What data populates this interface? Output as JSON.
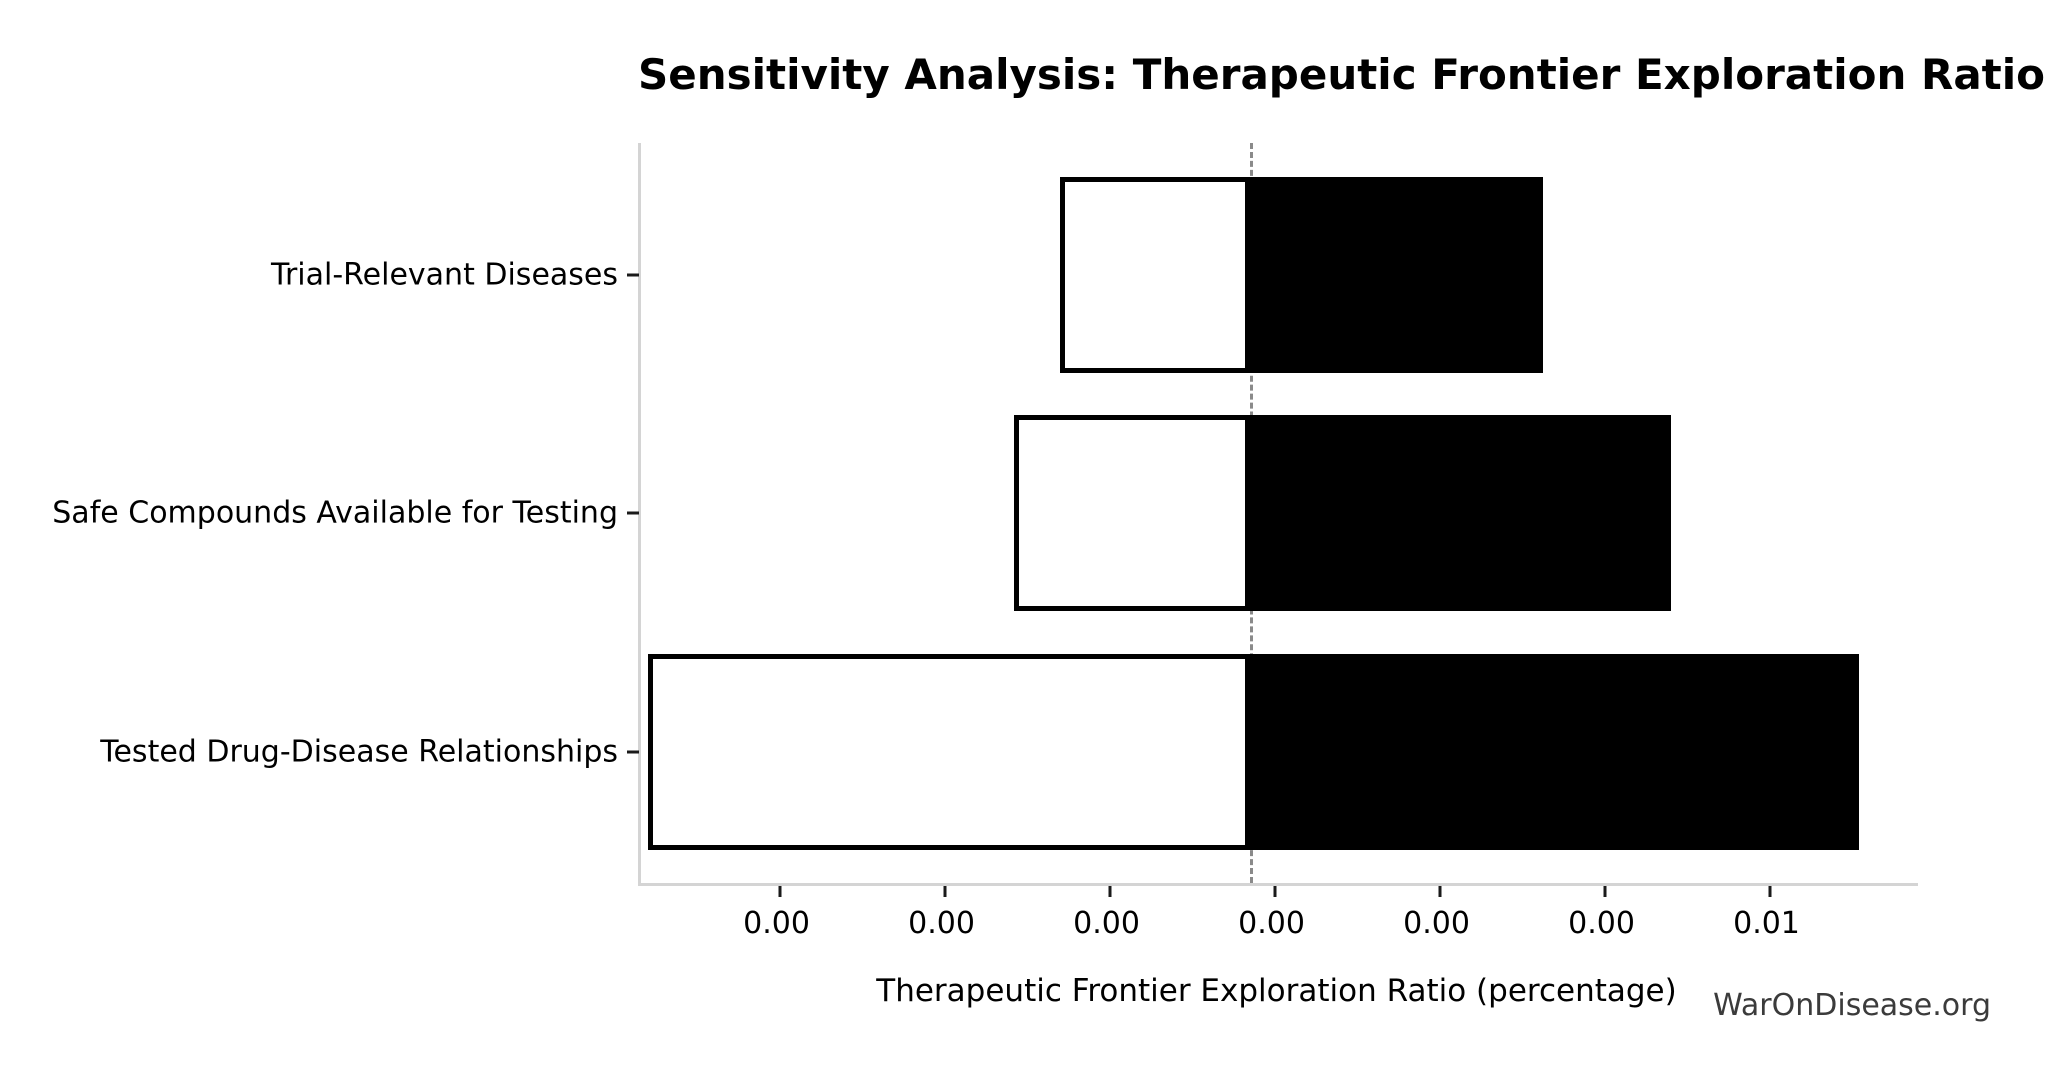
{
  "watermark": "WarOnDisease.org",
  "colors": {
    "bar_high_fill": "#000000",
    "bar_low_fill": "#ffffff",
    "bar_edge": "#000000",
    "baseline_line": "#8a8a8a",
    "axis_spine": "#d4d4d4",
    "tick_mark": "#1a1a1a",
    "text": "#000000",
    "watermark_text": "#3b3b3b"
  },
  "chart_data": {
    "type": "bar",
    "variant": "tornado-horizontal",
    "title": "Sensitivity Analysis: Therapeutic Frontier Exploration Ratio",
    "xlabel": "Therapeutic Frontier Exploration Ratio (percentage)",
    "ylabel": "",
    "categories": [
      "Trial-Relevant Diseases",
      "Safe Compounds Available for Testing",
      "Tested Drug-Disease Relationships"
    ],
    "series": [
      {
        "name": "low",
        "fill": "#ffffff",
        "edge": "#000000",
        "values": [
          0.0017,
          0.00142,
          -0.0008
        ]
      },
      {
        "name": "high",
        "fill": "#000000",
        "edge": "#000000",
        "values": [
          0.00463,
          0.0054,
          0.00654
        ]
      }
    ],
    "baseline": 0.00285,
    "xlim": [
      -0.00084,
      0.0069
    ],
    "x_ticks": [
      0.0,
      0.001,
      0.002,
      0.003,
      0.004,
      0.005,
      0.006
    ],
    "x_tick_labels": [
      "0.00",
      "0.00",
      "0.00",
      "0.00",
      "0.00",
      "0.00",
      "0.01"
    ],
    "grid": false,
    "legend": "none",
    "layout": {
      "row_centers_frac": [
        0.178,
        0.5,
        0.823
      ],
      "bar_height_frac": 0.265
    }
  }
}
